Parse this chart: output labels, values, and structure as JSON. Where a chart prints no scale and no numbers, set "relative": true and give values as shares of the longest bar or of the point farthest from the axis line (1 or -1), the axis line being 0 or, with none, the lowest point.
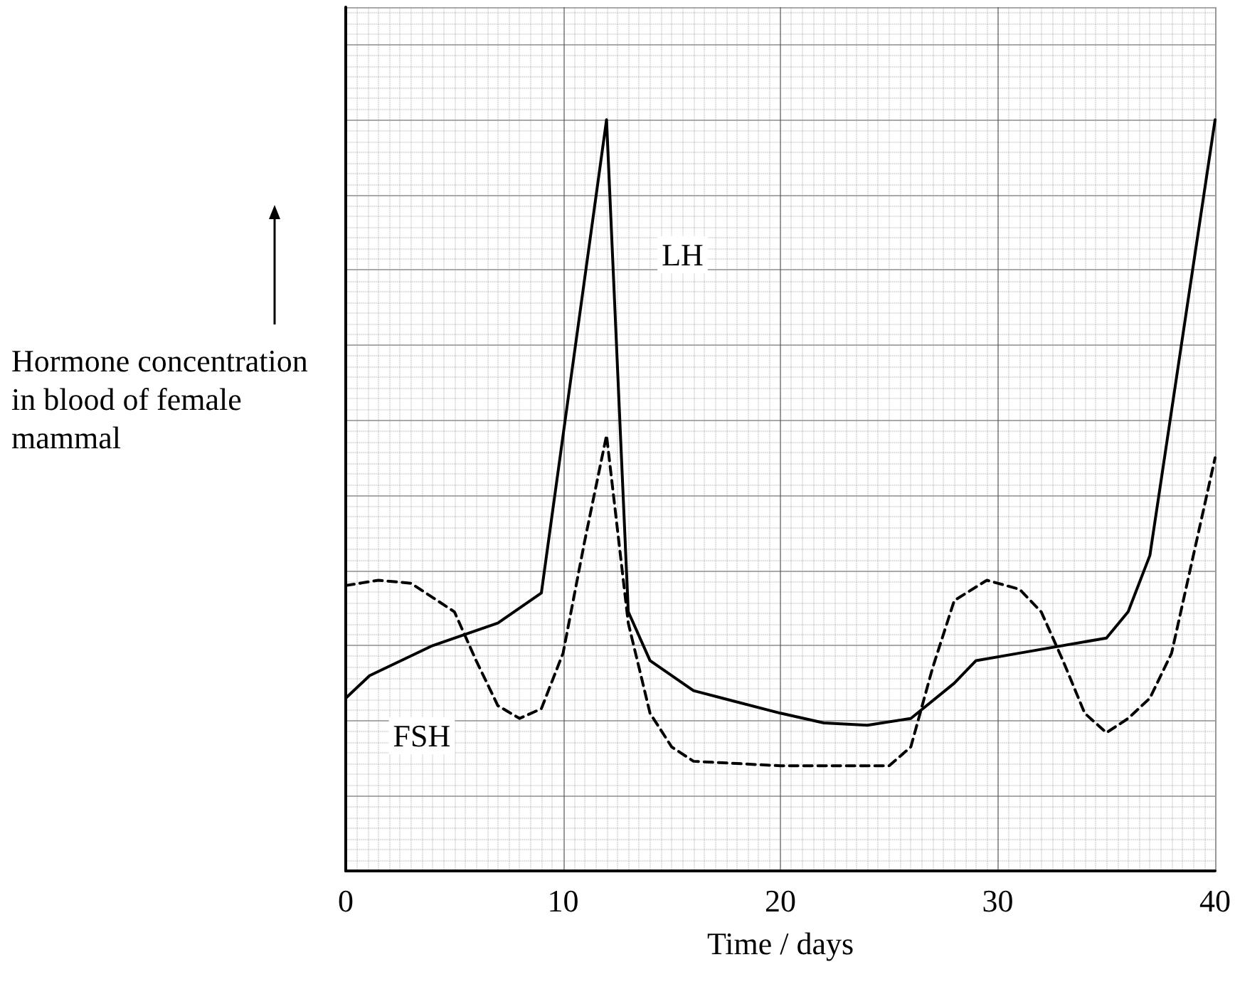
{
  "chart_data": {
    "type": "line",
    "relative": true,
    "xlabel": "Time / days",
    "ylabel": "Hormone concentration in blood of female mammal",
    "xlim": [
      0,
      40
    ],
    "xticks": [
      0,
      10,
      20,
      30,
      40
    ],
    "grid": true,
    "legend": false,
    "marker": "none",
    "series": [
      {
        "name": "LH",
        "color": "#000000",
        "line_style": "solid",
        "x": [
          0,
          1.1,
          4,
          7,
          9,
          12,
          13,
          14,
          16,
          20,
          22,
          24,
          26,
          28,
          29,
          31,
          35,
          36,
          37,
          40
        ],
        "values": [
          0.23,
          0.26,
          0.3,
          0.33,
          0.37,
          1.0,
          0.345,
          0.28,
          0.24,
          0.21,
          0.197,
          0.194,
          0.203,
          0.25,
          0.28,
          0.29,
          0.31,
          0.345,
          0.42,
          1.0
        ]
      },
      {
        "name": "FSH",
        "color": "#000000",
        "line_style": "dashed",
        "x": [
          0,
          1.5,
          3,
          5,
          6,
          7,
          8,
          9,
          10,
          11,
          12,
          13,
          14,
          15,
          16,
          20,
          25,
          26,
          27,
          28,
          29.5,
          31,
          32,
          33,
          34,
          35,
          36,
          37,
          38,
          39,
          40
        ],
        "values": [
          0.38,
          0.387,
          0.383,
          0.345,
          0.28,
          0.22,
          0.203,
          0.216,
          0.29,
          0.44,
          0.58,
          0.33,
          0.21,
          0.165,
          0.146,
          0.14,
          0.14,
          0.165,
          0.27,
          0.36,
          0.387,
          0.375,
          0.345,
          0.28,
          0.21,
          0.184,
          0.203,
          0.23,
          0.29,
          0.42,
          0.55
        ]
      }
    ]
  }
}
